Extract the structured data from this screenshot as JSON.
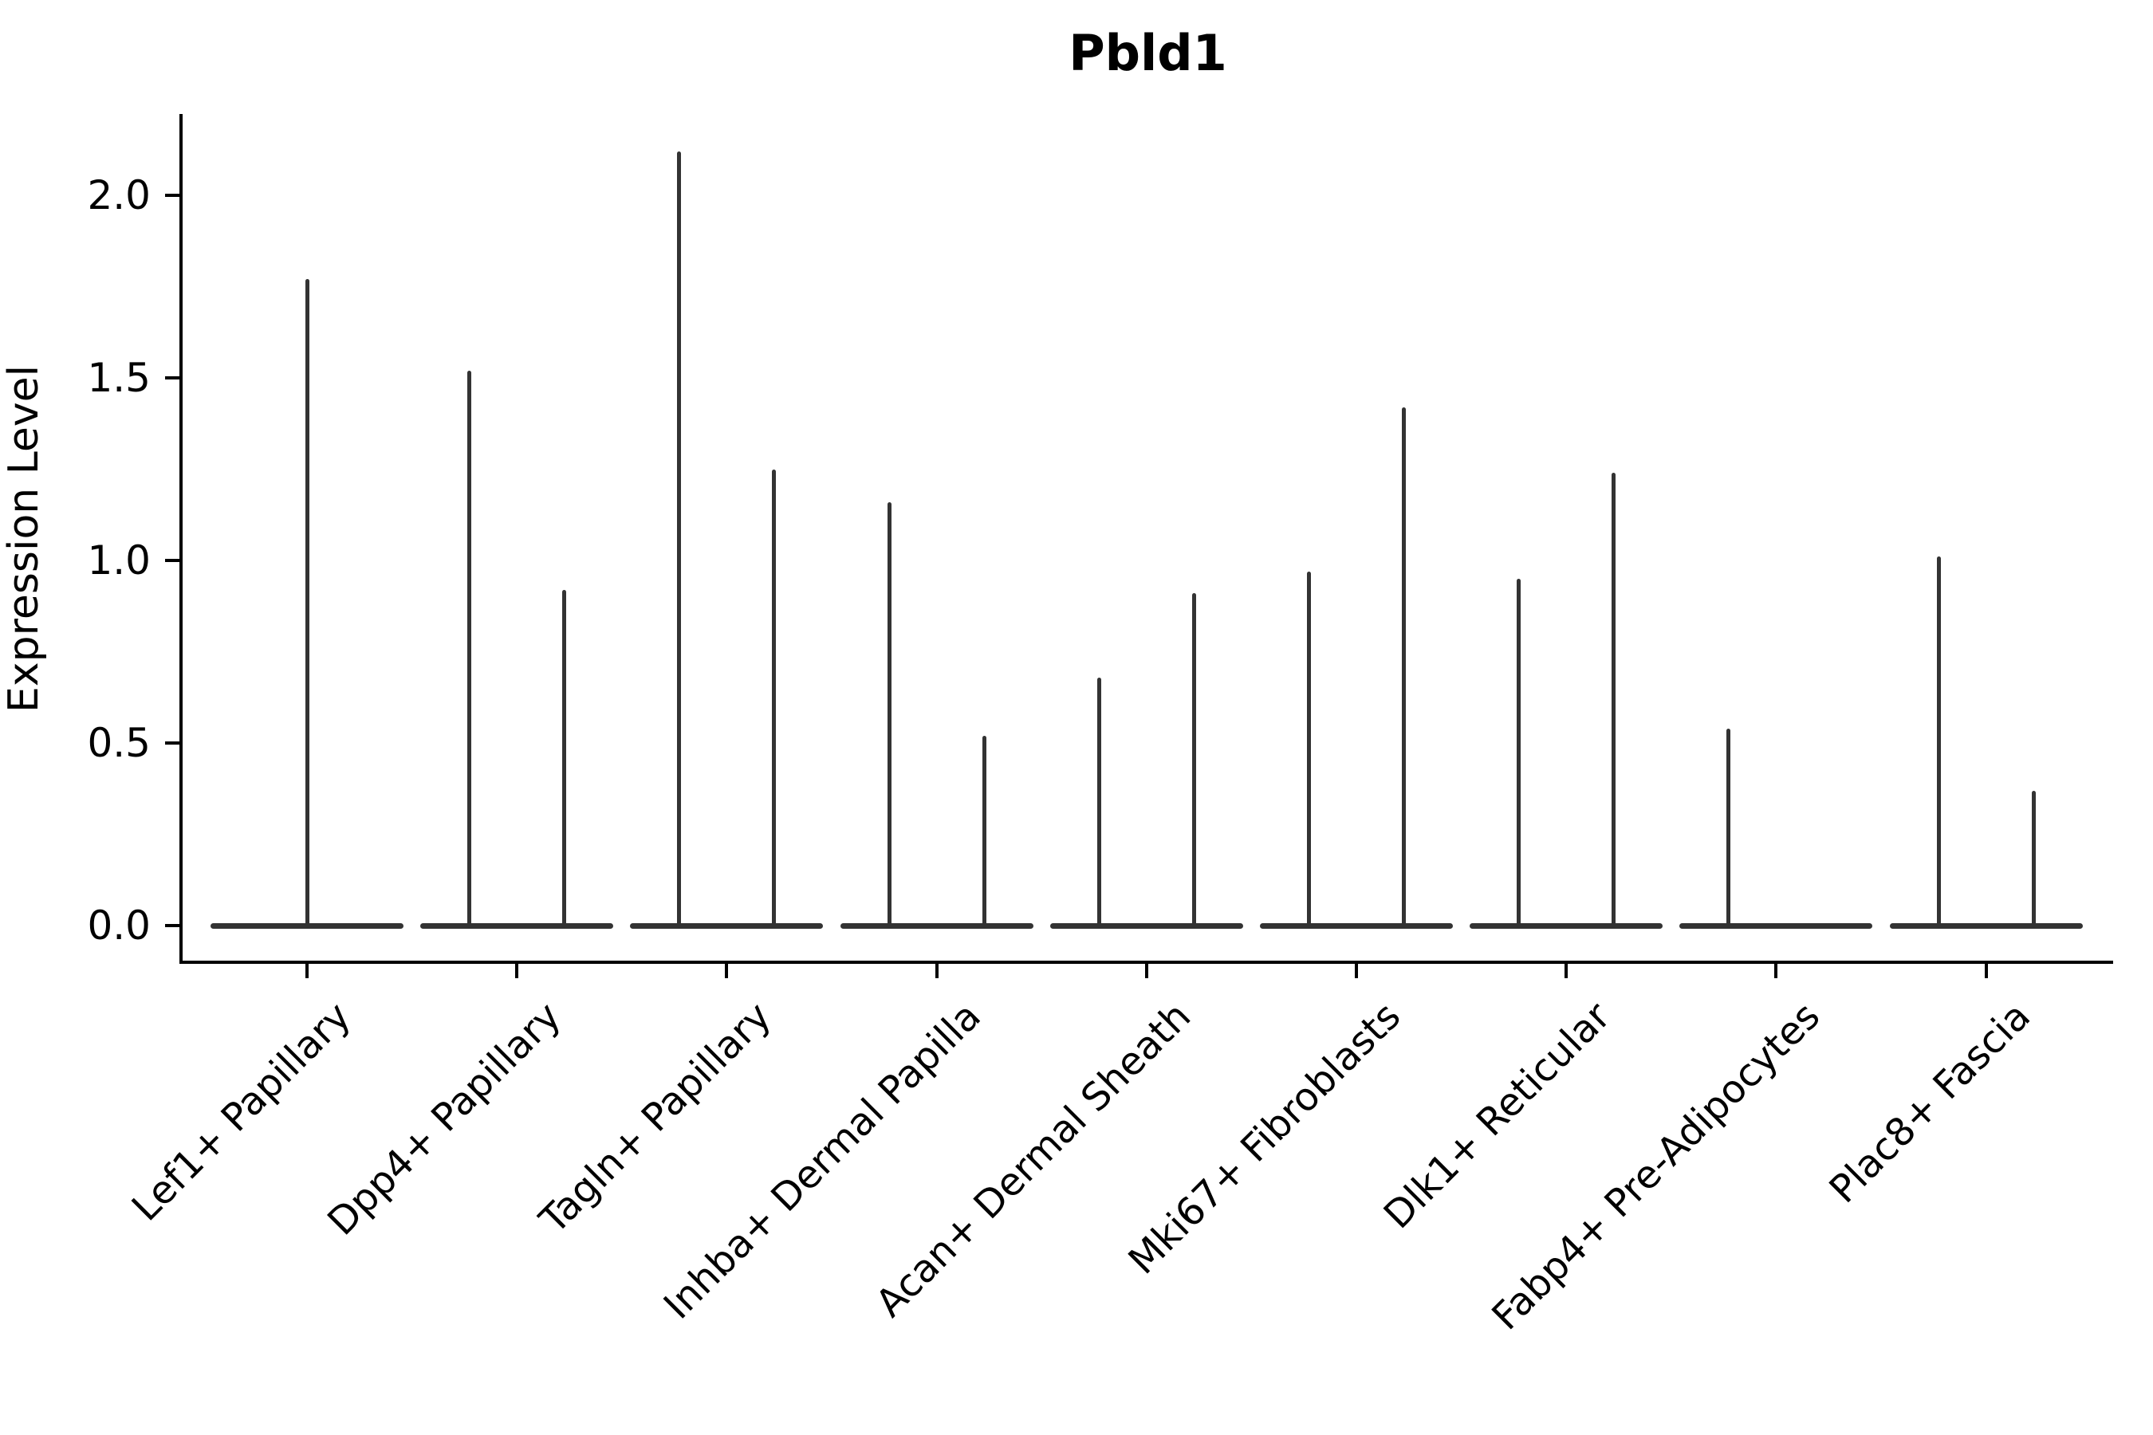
{
  "title": "Pbld1",
  "axes": {
    "ylabel": "Expression Level"
  },
  "colors": {
    "violin": "#333333",
    "axis": "#000000",
    "background": "#ffffff"
  },
  "chart_data": {
    "type": "violin",
    "title": "Pbld1",
    "ylabel": "Expression Level",
    "xlabel": "",
    "ylim": [
      -0.1,
      2.22
    ],
    "yticks": [
      0.0,
      0.5,
      1.0,
      1.5,
      2.0
    ],
    "ytick_labels": [
      "0.0",
      "0.5",
      "1.0",
      "1.5",
      "2.0"
    ],
    "grid": false,
    "legend": "none",
    "note": "Violin plot of Pbld1 expression per fibroblast cell type; density is concentrated at 0 so each violin collapses to a flat line at 0 with a thin spike up to its maximum expression value. Most cell types show two side-by-side violins.",
    "categories": [
      "Lef1+ Papillary",
      "Dpp4+ Papillary",
      "Tagln+ Papillary",
      "Inhba+ Dermal Papilla",
      "Acan+ Dermal Sheath",
      "Mki67+ Fibroblasts",
      "Dlk1+ Reticular",
      "Fabp4+ Pre-Adipocytes",
      "Plac8+ Fascia"
    ],
    "groups": [
      {
        "category": "Lef1+ Papillary",
        "violins": [
          {
            "position": "center",
            "max_expression": 1.77
          }
        ]
      },
      {
        "category": "Dpp4+ Papillary",
        "violins": [
          {
            "position": "left",
            "max_expression": 1.52
          },
          {
            "position": "right",
            "max_expression": 0.92
          }
        ]
      },
      {
        "category": "Tagln+ Papillary",
        "violins": [
          {
            "position": "left",
            "max_expression": 2.12
          },
          {
            "position": "right",
            "max_expression": 1.25
          }
        ]
      },
      {
        "category": "Inhba+ Dermal Papilla",
        "violins": [
          {
            "position": "left",
            "max_expression": 1.16
          },
          {
            "position": "right",
            "max_expression": 0.52
          }
        ]
      },
      {
        "category": "Acan+ Dermal Sheath",
        "violins": [
          {
            "position": "left",
            "max_expression": 0.68
          },
          {
            "position": "right",
            "max_expression": 0.91
          }
        ]
      },
      {
        "category": "Mki67+ Fibroblasts",
        "violins": [
          {
            "position": "left",
            "max_expression": 0.97
          },
          {
            "position": "right",
            "max_expression": 1.42
          }
        ]
      },
      {
        "category": "Dlk1+ Reticular",
        "violins": [
          {
            "position": "left",
            "max_expression": 0.95
          },
          {
            "position": "right",
            "max_expression": 1.24
          }
        ]
      },
      {
        "category": "Fabp4+ Pre-Adipocytes",
        "violins": [
          {
            "position": "left",
            "max_expression": 0.54
          },
          {
            "position": "right",
            "max_expression": 0.0
          }
        ]
      },
      {
        "category": "Plac8+ Fascia",
        "violins": [
          {
            "position": "left",
            "max_expression": 1.01
          },
          {
            "position": "right",
            "max_expression": 0.37
          }
        ]
      }
    ]
  }
}
